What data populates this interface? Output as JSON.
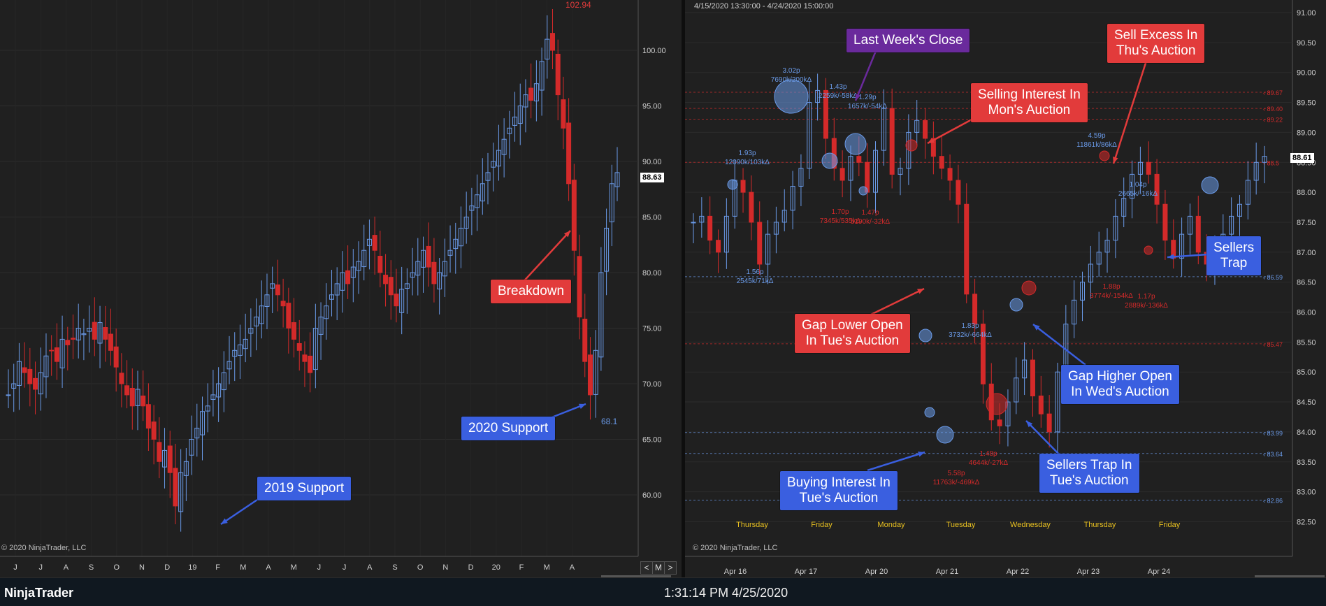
{
  "app": {
    "name": "NinjaTrader",
    "clock": "1:31:14 PM 4/25/2020"
  },
  "left_chart": {
    "copyright": "© 2020 NinjaTrader, LLC",
    "last_price": "88.63",
    "high_label": "102.94",
    "low_label": "68.1",
    "y_ticks": [
      "100.00",
      "95.00",
      "90.00",
      "85.00",
      "80.00",
      "75.00",
      "70.00",
      "65.00",
      "60.00"
    ],
    "x_ticks": [
      "J",
      "J",
      "A",
      "S",
      "O",
      "N",
      "D",
      "19",
      "F",
      "M",
      "A",
      "M",
      "J",
      "J",
      "A",
      "S",
      "O",
      "N",
      "D",
      "20",
      "F",
      "M",
      "A"
    ],
    "nav_labels": [
      "<",
      "M",
      ">"
    ],
    "callouts": {
      "breakdown": "Breakdown",
      "support_2020": "2020 Support",
      "support_2019": "2019 Support"
    }
  },
  "right_chart": {
    "date_range": "4/15/2020 13:30:00 - 4/24/2020 15:00:00",
    "copyright": "© 2020 NinjaTrader, LLC",
    "last_price": "88.61",
    "y_ticks": [
      "91.00",
      "90.50",
      "90.00",
      "89.50",
      "89.00",
      "88.50",
      "88.00",
      "87.50",
      "87.00",
      "86.50",
      "86.00",
      "85.50",
      "85.00",
      "84.50",
      "84.00",
      "83.50",
      "83.00",
      "82.50"
    ],
    "x_ticks": [
      "Apr 16",
      "Apr 17",
      "Apr 20",
      "Apr 21",
      "Apr 22",
      "Apr 23",
      "Apr 24"
    ],
    "day_labels": [
      "Thursday",
      "Friday",
      "Monday",
      "Tuesday",
      "Wednesday",
      "Thursday",
      "Friday"
    ],
    "level_labels": [
      "89.67",
      "89.40",
      "89.22",
      "88.5",
      "86.59",
      "85.47",
      "83.99",
      "83.64",
      "82.86"
    ],
    "annotations": {
      "a1": [
        "3.02p",
        "7690k/200kΔ"
      ],
      "a2": [
        "1.93p",
        "12090k/103kΔ"
      ],
      "a3": [
        "1.43p",
        "2259k/-58kΔ"
      ],
      "a4": [
        "1.29p",
        "1657k/-54kΔ"
      ],
      "a5": [
        "1.70p",
        "7345k/535kΔ"
      ],
      "a6": [
        "1.47p",
        "5190k/-32kΔ"
      ],
      "a7": [
        "1.56p",
        "2545k/71kΔ"
      ],
      "a8": [
        "4.59p",
        "11861k/86kΔ"
      ],
      "a9": [
        "1.04p",
        "2665k/-16kΔ"
      ],
      "a10": [
        "1.88p",
        "3774k/-154kΔ"
      ],
      "a11": [
        "1.17p",
        "2889k/-136kΔ"
      ],
      "a12": [
        "1.83p",
        "3732k/-664kΔ"
      ],
      "a13": [
        "5.58p",
        "11763k/-469kΔ"
      ],
      "a14": [
        "1.48p",
        "4644k/-27kΔ"
      ]
    },
    "callouts": {
      "last_week": "Last Week's Close",
      "sell_excess": [
        "Sell Excess In",
        "Thu's Auction"
      ],
      "selling_interest": [
        "Selling Interest In",
        "Mon's Auction"
      ],
      "sellers_trap": [
        "Sellers",
        "Trap"
      ],
      "gap_lower": [
        "Gap Lower Open",
        "In Tue's Auction"
      ],
      "gap_higher": [
        "Gap Higher Open",
        "In Wed's Auction"
      ],
      "buying_interest": [
        "Buying Interest In",
        "Tue's Auction"
      ],
      "sellers_trap_tue": [
        "Sellers Trap In",
        "Tue's Auction"
      ]
    }
  },
  "colors": {
    "up": "#6a9ae8",
    "down": "#d42a2a",
    "accent_red": "#e23b3b",
    "accent_blue": "#3a5fe0",
    "accent_purple": "#6a2a9c",
    "day_label": "#e8c020"
  }
}
